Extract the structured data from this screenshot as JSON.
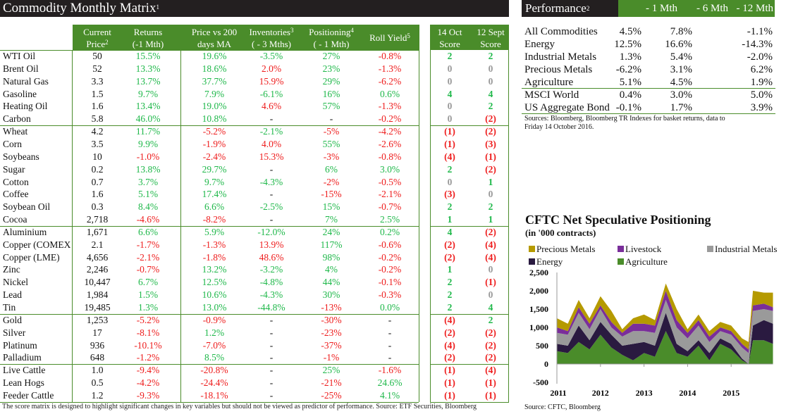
{
  "matrix": {
    "title": "Commodity Monthly Matrix",
    "title_sup": "1",
    "headers": [
      {
        "l1": "Current",
        "l2": "Price",
        "sup": "2"
      },
      {
        "l1": "Returns",
        "l2": "(-1 Mth)",
        "sup": ""
      },
      {
        "l1": "Price vs 200",
        "l2": "days MA",
        "sup": ""
      },
      {
        "l1": "Inventories",
        "l2": "( - 3 Mths)",
        "sup": "3",
        "sup_on_l1": true
      },
      {
        "l1": "Positioning",
        "l2": "( - 1 Mth)",
        "sup": "4",
        "sup_on_l1": true
      },
      {
        "l1": "",
        "l2": "Roll Yield",
        "sup": "5"
      },
      {
        "l1": "14 Oct",
        "l2": "Score",
        "sup": ""
      },
      {
        "l1": "12 Sept",
        "l2": "Score",
        "sup": ""
      }
    ],
    "groups": [
      [
        [
          "WTI Oil",
          "50",
          "15.5%",
          "19.6%",
          "-3.5%",
          "27%",
          "-0.8%",
          "2",
          "2"
        ],
        [
          "Brent Oil",
          "52",
          "13.3%",
          "18.6%",
          "2.0%",
          "23%",
          "-1.3%",
          "0",
          "0"
        ],
        [
          "Natural Gas",
          "3.3",
          "13.7%",
          "37.7%",
          "15.9%",
          "29%",
          "-6.2%",
          "0",
          "0"
        ],
        [
          "Gasoline",
          "1.5",
          "9.7%",
          "7.9%",
          "-6.1%",
          "16%",
          "0.6%",
          "4",
          "4"
        ],
        [
          "Heating Oil",
          "1.6",
          "13.4%",
          "19.0%",
          "4.6%",
          "57%",
          "-1.3%",
          "0",
          "2"
        ],
        [
          "Carbon",
          "5.8",
          "46.0%",
          "10.8%",
          "-",
          "-",
          "-0.2%",
          "0",
          "(2)"
        ]
      ],
      [
        [
          "Wheat",
          "4.2",
          "11.7%",
          "-5.2%",
          "-2.1%",
          "-5%",
          "-4.2%",
          "(1)",
          "(2)"
        ],
        [
          "Corn",
          "3.5",
          "9.9%",
          "-1.9%",
          "4.0%",
          "55%",
          "-2.6%",
          "(1)",
          "(3)"
        ],
        [
          "Soybeans",
          "10",
          "-1.0%",
          "-2.4%",
          "15.3%",
          "-3%",
          "-0.8%",
          "(4)",
          "(1)"
        ],
        [
          "Sugar",
          "0.2",
          "13.8%",
          "29.7%",
          "-",
          "6%",
          "3.0%",
          "2",
          "(2)"
        ],
        [
          "Cotton",
          "0.7",
          "3.7%",
          "9.7%",
          "-4.3%",
          "-2%",
          "-0.5%",
          "0",
          "1"
        ],
        [
          "Coffee",
          "1.6",
          "5.1%",
          "17.4%",
          "-",
          "-15%",
          "-2.1%",
          "(3)",
          "0"
        ],
        [
          "Soybean Oil",
          "0.3",
          "8.4%",
          "6.6%",
          "-2.5%",
          "15%",
          "-0.7%",
          "2",
          "2"
        ],
        [
          "Cocoa",
          "2,718",
          "-4.6%",
          "-8.2%",
          "-",
          "7%",
          "2.5%",
          "1",
          "1"
        ]
      ],
      [
        [
          "Aluminium",
          "1,671",
          "6.6%",
          "5.9%",
          "-12.0%",
          "24%",
          "0.2%",
          "4",
          "(2)"
        ],
        [
          "Copper (COMEX",
          "2.1",
          "-1.7%",
          "-1.3%",
          "13.9%",
          "117%",
          "-0.6%",
          "(2)",
          "(4)"
        ],
        [
          "Copper (LME)",
          "4,656",
          "-2.1%",
          "-1.8%",
          "48.6%",
          "98%",
          "-0.2%",
          "(2)",
          "(4)"
        ],
        [
          "Zinc",
          "2,246",
          "-0.7%",
          "13.2%",
          "-3.2%",
          "4%",
          "-0.2%",
          "1",
          "0"
        ],
        [
          "Nickel",
          "10,447",
          "6.7%",
          "12.5%",
          "-4.8%",
          "44%",
          "-0.1%",
          "2",
          "(1)"
        ],
        [
          "Lead",
          "1,984",
          "1.5%",
          "10.6%",
          "-4.3%",
          "30%",
          "-0.3%",
          "2",
          "0"
        ],
        [
          "Tin",
          "19,485",
          "1.3%",
          "13.0%",
          "-44.8%",
          "-13%",
          "0.0%",
          "2",
          "4"
        ]
      ],
      [
        [
          "Gold",
          "1,253",
          "-5.2%",
          "-0.9%",
          "-",
          "-30%",
          "-",
          "(4)",
          "2"
        ],
        [
          "Silver",
          "17",
          "-8.1%",
          "1.2%",
          "-",
          "-23%",
          "-",
          "(2)",
          "(2)"
        ],
        [
          "Platinum",
          "936",
          "-10.1%",
          "-7.0%",
          "-",
          "-37%",
          "-",
          "(4)",
          "(2)"
        ],
        [
          "Palladium",
          "648",
          "-1.2%",
          "8.5%",
          "-",
          "-1%",
          "-",
          "(2)",
          "(2)"
        ]
      ],
      [
        [
          "Live Cattle",
          "1.0",
          "-9.4%",
          "-20.8%",
          "-",
          "25%",
          "-1.6%",
          "(1)",
          "(4)"
        ],
        [
          "Lean Hogs",
          "0.5",
          "-4.2%",
          "-24.4%",
          "-",
          "-21%",
          "24.6%",
          "(1)",
          "(1)"
        ],
        [
          "Feeder Cattle",
          "1.2",
          "-9.3%",
          "-18.1%",
          "-",
          "-25%",
          "4.1%",
          "(1)",
          "(1)"
        ]
      ]
    ],
    "footnote": "The score matrix is designed to highlight significant changes in key variables but should not be viewed as predictor of performance. Source: ETF Securities, Bloomberg"
  },
  "performance": {
    "title": "Performance",
    "title_sup": "2",
    "columns": [
      "- 1 Mth",
      "- 6 Mth",
      "- 12 Mth"
    ],
    "rows": [
      [
        "All Commodities",
        "4.5%",
        "7.8%",
        "-1.1%"
      ],
      [
        "Energy",
        "12.5%",
        "16.6%",
        "-14.3%"
      ],
      [
        "Industrial Metals",
        "1.3%",
        "5.4%",
        "-2.0%"
      ],
      [
        "Precious Metals",
        "-6.2%",
        "3.1%",
        "6.2%"
      ],
      [
        "Agriculture",
        "5.1%",
        "4.5%",
        "1.9%"
      ],
      [
        "MSCI World",
        "0.4%",
        "3.0%",
        "5.0%"
      ],
      [
        "US Aggregate Bond",
        "-0.1%",
        "1.7%",
        "3.9%"
      ]
    ],
    "source": "Sources: Bloomberg, Bloomberg TR Indexes for basket returns, data to Friday 14 October 2016."
  },
  "colors": {
    "positive": "#1fb84a",
    "negative": "#ee1c1c",
    "neutral": "#999999",
    "brand_green": "#4a8c2a",
    "header_dark": "#231f20"
  },
  "chart_data": {
    "type": "area",
    "stacked": true,
    "title": "CFTC Net Speculative Positioning",
    "subtitle": "(in '000 contracts)",
    "source": "Source: CFTC, Bloomberg",
    "ylim": [
      -500,
      2500
    ],
    "yticks": [
      "-500",
      "0",
      "500",
      "1,000",
      "1,500",
      "2,000",
      "2,500"
    ],
    "xticks": [
      "2011",
      "2012",
      "2013",
      "2014",
      "2015"
    ],
    "legend_placement": "top",
    "legend": [
      "Precious Metals",
      "Livestock",
      "Industrial Metals",
      "Energy",
      "Agriculture"
    ],
    "x": [
      2011.0,
      2011.25,
      2011.5,
      2011.75,
      2012.0,
      2012.25,
      2012.5,
      2012.75,
      2013.0,
      2013.25,
      2013.5,
      2013.75,
      2014.0,
      2014.25,
      2014.5,
      2014.75,
      2015.0,
      2015.25,
      2015.4,
      2015.5,
      2015.75,
      2015.96
    ],
    "series": [
      {
        "name": "Agriculture",
        "color": "#4a8c2a",
        "values": [
          350,
          300,
          600,
          400,
          800,
          450,
          250,
          100,
          300,
          200,
          900,
          300,
          200,
          500,
          100,
          550,
          400,
          100,
          0,
          650,
          650,
          550
        ]
      },
      {
        "name": "Energy",
        "color": "#2a1a40",
        "values": [
          200,
          200,
          450,
          250,
          350,
          350,
          250,
          450,
          300,
          300,
          500,
          250,
          150,
          150,
          200,
          150,
          150,
          50,
          0,
          400,
          550,
          550
        ]
      },
      {
        "name": "Industrial Metals",
        "color": "#9a9a9a",
        "values": [
          300,
          300,
          350,
          300,
          350,
          200,
          250,
          350,
          300,
          350,
          350,
          450,
          350,
          400,
          300,
          200,
          250,
          300,
          300,
          400,
          300,
          350
        ]
      },
      {
        "name": "Livestock",
        "color": "#7a2e9a",
        "values": [
          150,
          100,
          150,
          150,
          100,
          150,
          100,
          200,
          200,
          200,
          250,
          200,
          150,
          150,
          150,
          100,
          100,
          100,
          100,
          150,
          150,
          100
        ]
      },
      {
        "name": "Precious Metals",
        "color": "#b59a00",
        "values": [
          250,
          200,
          200,
          150,
          250,
          300,
          100,
          150,
          250,
          150,
          200,
          300,
          100,
          150,
          150,
          150,
          150,
          150,
          200,
          400,
          300,
          400
        ]
      }
    ]
  }
}
